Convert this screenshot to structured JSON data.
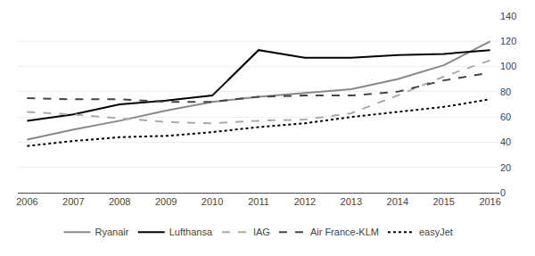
{
  "chart_data": {
    "type": "line",
    "x": [
      2006,
      2007,
      2008,
      2009,
      2010,
      2011,
      2012,
      2013,
      2014,
      2015,
      2016
    ],
    "series": [
      {
        "name": "Ryanair",
        "color": "#888888",
        "line_style": "solid",
        "values": [
          42,
          50,
          57,
          65,
          72,
          76,
          79,
          82,
          90,
          101,
          120
        ]
      },
      {
        "name": "Lufthansa",
        "color": "#000000",
        "line_style": "solid",
        "values": [
          57,
          62,
          70,
          73,
          77,
          113,
          107,
          107,
          109,
          110,
          113
        ]
      },
      {
        "name": "IAG",
        "color": "#aaaaaa",
        "line_style": "dashed",
        "values": [
          64,
          62,
          59,
          56,
          55,
          57,
          58,
          63,
          77,
          92,
          105
        ]
      },
      {
        "name": "Air France-KLM",
        "color": "#444444",
        "line_style": "dashed",
        "values": [
          75,
          74,
          74,
          72,
          72,
          76,
          77,
          77,
          80,
          89,
          95
        ]
      },
      {
        "name": "easyJet",
        "color": "#000000",
        "line_style": "dotted",
        "values": [
          37,
          41,
          44,
          45,
          48,
          52,
          55,
          60,
          64,
          68,
          74
        ]
      }
    ],
    "xlim": [
      2005.8,
      2016.2
    ],
    "xticks": [
      2006,
      2007,
      2008,
      2009,
      2010,
      2011,
      2012,
      2013,
      2014,
      2015,
      2016
    ],
    "ylim": [
      0,
      140
    ],
    "yticks": [
      0,
      20,
      40,
      60,
      80,
      100,
      120,
      140
    ],
    "grid": true,
    "legend": "bottom"
  }
}
